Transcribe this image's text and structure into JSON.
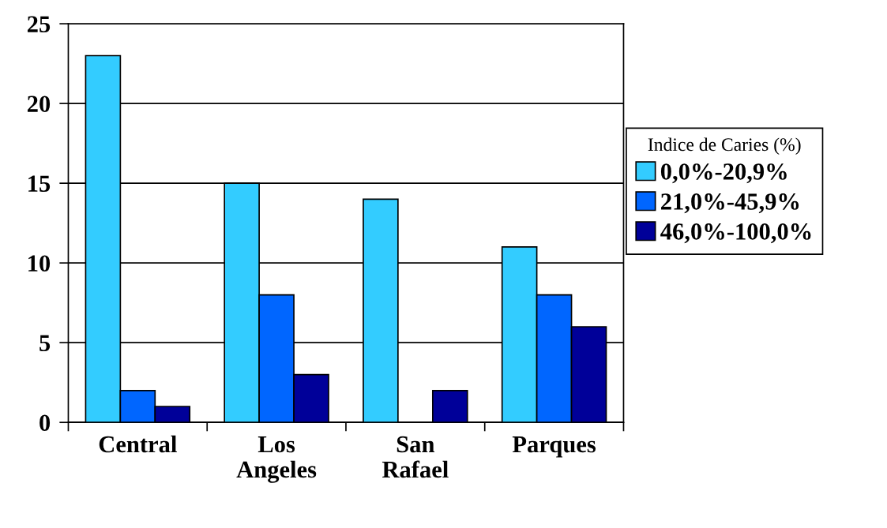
{
  "chart_data": {
    "type": "bar",
    "categories": [
      "Central",
      "Los\nAngeles",
      "San\nRafael",
      "Parques"
    ],
    "series": [
      {
        "name": "0,0%-20,9%",
        "color": "#33ccff",
        "values": [
          23,
          15,
          14,
          11
        ]
      },
      {
        "name": "21,0%-45,9%",
        "color": "#0066ff",
        "values": [
          2,
          8,
          null,
          8
        ]
      },
      {
        "name": "46,0%-100,0%",
        "color": "#000099",
        "values": [
          1,
          3,
          2,
          6
        ]
      }
    ],
    "legend_title": "Indice de Caries (%)",
    "ylim": [
      0,
      25
    ],
    "yticks": [
      0,
      5,
      10,
      15,
      20,
      25
    ],
    "grid": "y",
    "legend": "right"
  }
}
